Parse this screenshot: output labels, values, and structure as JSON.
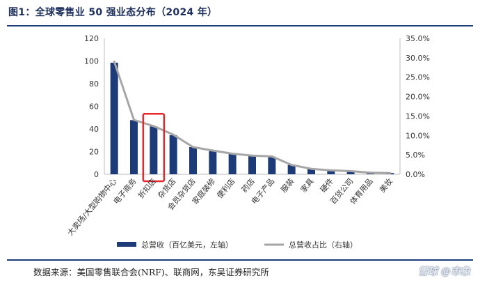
{
  "figure": {
    "title": "图1：全球零售业 50 强业态分布（2024 年）",
    "source": "数据来源：美国零售联合会(NRF)、联商网，东吴证券研究所",
    "watermark": "雪球 @市象"
  },
  "chart_data": {
    "type": "bar+line",
    "categories": [
      "大卖场/大型购物中心",
      "电子商务",
      "折扣店",
      "杂货店",
      "会员杂货店",
      "家庭装修",
      "便利店",
      "药店",
      "电子产品",
      "服装",
      "家具",
      "硬件",
      "百货公司",
      "体育用品",
      "美妆"
    ],
    "series": [
      {
        "name": "总营收（百亿美元，左轴）",
        "type": "bar",
        "axis": "left",
        "color": "#1c3b78",
        "values": [
          98.5,
          47.8,
          42.3,
          34.5,
          24.0,
          20.4,
          17.9,
          16.3,
          15.5,
          8.2,
          4.8,
          3.3,
          2.6,
          1.3,
          1.1
        ]
      },
      {
        "name": "总营收占比（右轴）",
        "type": "line",
        "axis": "right",
        "color": "#a6a6a6",
        "values": [
          29.0,
          14.0,
          12.4,
          10.2,
          7.0,
          6.1,
          5.3,
          4.8,
          4.6,
          2.4,
          1.4,
          1.0,
          0.8,
          0.4,
          0.3
        ]
      }
    ],
    "y_left": {
      "min": 0,
      "max": 120,
      "ticks": [
        "0",
        "20",
        "40",
        "60",
        "80",
        "100",
        "120"
      ]
    },
    "y_right": {
      "min": 0,
      "max": 35,
      "ticks": [
        "0.0%",
        "5.0%",
        "10.0%",
        "15.0%",
        "20.0%",
        "25.0%",
        "30.0%",
        "35.0%"
      ]
    },
    "grid": false,
    "legend_position": "bottom",
    "highlight": {
      "category": "折扣店",
      "color": "#e8262b"
    }
  }
}
